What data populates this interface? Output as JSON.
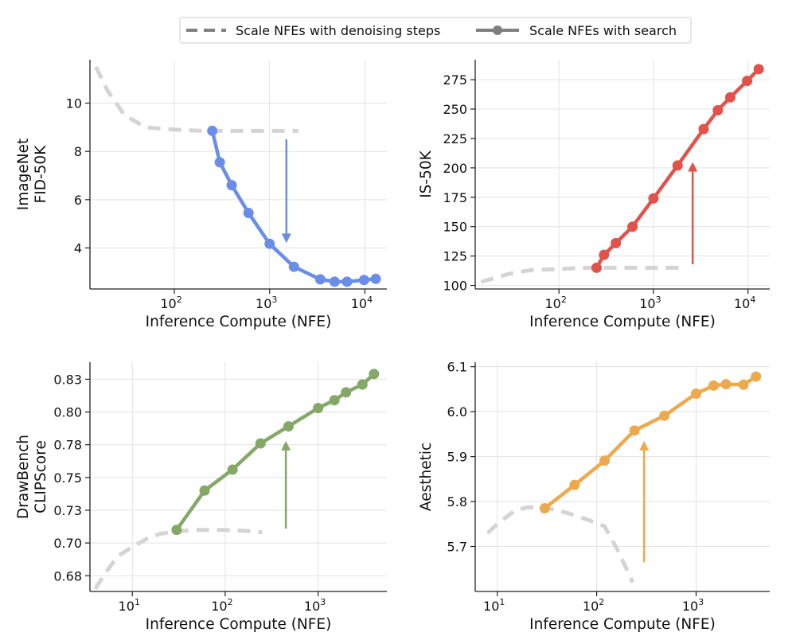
{
  "legend": {
    "placement": "top-center",
    "items": [
      {
        "label": "Scale NFEs with denoising steps",
        "style": "dashed",
        "color": "#7f7f7f"
      },
      {
        "label": "Scale NFEs with search",
        "style": "solid-marker",
        "color": "#7f7f7f"
      }
    ]
  },
  "chart_data": [
    {
      "type": "line",
      "ylabel_lines": [
        "ImageNet",
        "FID-50K"
      ],
      "xlabel": "Inference Compute (NFE)",
      "xscale": "log",
      "xlim": [
        13,
        17000
      ],
      "ylim": [
        2.3,
        11.8
      ],
      "xticks": [
        {
          "base": "10",
          "exp": "2",
          "value": 100
        },
        {
          "base": "10",
          "exp": "3",
          "value": 1000
        },
        {
          "base": "10",
          "exp": "4",
          "value": 10000
        }
      ],
      "yticks": [
        {
          "label": "4",
          "value": 4
        },
        {
          "label": "6",
          "value": 6
        },
        {
          "label": "8",
          "value": 8
        },
        {
          "label": "10",
          "value": 10
        }
      ],
      "grid": true,
      "color": "#6a8ee8",
      "search_series": {
        "x": [
          250,
          300,
          400,
          600,
          1000,
          1800,
          3400,
          4800,
          6500,
          9800,
          13000
        ],
        "y": [
          8.85,
          7.55,
          6.6,
          5.45,
          4.17,
          3.22,
          2.7,
          2.6,
          2.6,
          2.67,
          2.72
        ]
      },
      "steps_series": {
        "x": [
          15,
          20,
          30,
          50,
          100,
          200,
          500,
          1000,
          2000
        ],
        "y": [
          11.5,
          10.5,
          9.5,
          9.0,
          8.9,
          8.85,
          8.85,
          8.85,
          8.85
        ]
      },
      "arrow": {
        "x": 1500,
        "y_from": 8.5,
        "y_to": 4.2
      }
    },
    {
      "type": "line",
      "ylabel_lines": [
        "IS-50K"
      ],
      "xlabel": "Inference Compute (NFE)",
      "xscale": "log",
      "xlim": [
        13,
        17000
      ],
      "ylim": [
        97,
        292
      ],
      "xticks": [
        {
          "base": "10",
          "exp": "2",
          "value": 100
        },
        {
          "base": "10",
          "exp": "3",
          "value": 1000
        },
        {
          "base": "10",
          "exp": "4",
          "value": 10000
        }
      ],
      "yticks": [
        {
          "label": "100",
          "value": 100
        },
        {
          "label": "125",
          "value": 125
        },
        {
          "label": "150",
          "value": 150
        },
        {
          "label": "175",
          "value": 175
        },
        {
          "label": "200",
          "value": 200
        },
        {
          "label": "225",
          "value": 225
        },
        {
          "label": "250",
          "value": 250
        },
        {
          "label": "275",
          "value": 275
        }
      ],
      "grid": true,
      "color": "#e0524a",
      "search_series": {
        "x": [
          250,
          300,
          400,
          600,
          1000,
          1800,
          3400,
          4800,
          6500,
          9800,
          13000
        ],
        "y": [
          115,
          126,
          136,
          150,
          174,
          202,
          233,
          249,
          260,
          274,
          284
        ]
      },
      "steps_series": {
        "x": [
          15,
          30,
          50,
          100,
          200,
          500,
          1000,
          2000
        ],
        "y": [
          103,
          110,
          113,
          114,
          115,
          115,
          115,
          115
        ]
      },
      "arrow": {
        "x": 2600,
        "y_from": 118,
        "y_to": 205
      }
    },
    {
      "type": "line",
      "ylabel_lines": [
        "DrawBench",
        "CLIPScore"
      ],
      "xlabel": "Inference Compute (NFE)",
      "xscale": "log",
      "xlim": [
        3.5,
        5500
      ],
      "ylim": [
        0.663,
        0.838
      ],
      "xticks": [
        {
          "base": "10",
          "exp": "1",
          "value": 10
        },
        {
          "base": "10",
          "exp": "2",
          "value": 100
        },
        {
          "base": "10",
          "exp": "3",
          "value": 1000
        }
      ],
      "yticks": [
        {
          "label": "0.68",
          "value": 0.675
        },
        {
          "label": "0.70",
          "value": 0.7
        },
        {
          "label": "0.73",
          "value": 0.725
        },
        {
          "label": "0.75",
          "value": 0.75
        },
        {
          "label": "0.78",
          "value": 0.775
        },
        {
          "label": "0.80",
          "value": 0.8
        },
        {
          "label": "0.83",
          "value": 0.825
        }
      ],
      "grid": true,
      "color": "#85a867",
      "search_series": {
        "x": [
          30,
          60,
          120,
          240,
          480,
          1000,
          1500,
          2000,
          3000,
          4000
        ],
        "y": [
          0.71,
          0.74,
          0.756,
          0.776,
          0.789,
          0.803,
          0.809,
          0.815,
          0.821,
          0.829
        ]
      },
      "steps_series": {
        "x": [
          4,
          5,
          7,
          10,
          15,
          20,
          30,
          50,
          100,
          200,
          250
        ],
        "y": [
          0.665,
          0.676,
          0.69,
          0.697,
          0.704,
          0.707,
          0.709,
          0.71,
          0.71,
          0.709,
          0.708
        ]
      },
      "arrow": {
        "x": 450,
        "y_from": 0.711,
        "y_to": 0.778
      }
    },
    {
      "type": "line",
      "ylabel_lines": [
        "Aesthetic"
      ],
      "xlabel": "Inference Compute (NFE)",
      "xscale": "log",
      "xlim": [
        6,
        5500
      ],
      "ylim": [
        5.6,
        6.11
      ],
      "xticks": [
        {
          "base": "10",
          "exp": "1",
          "value": 10
        },
        {
          "base": "10",
          "exp": "2",
          "value": 100
        },
        {
          "base": "10",
          "exp": "3",
          "value": 1000
        }
      ],
      "yticks": [
        {
          "label": "5.7",
          "value": 5.7
        },
        {
          "label": "5.8",
          "value": 5.8
        },
        {
          "label": "5.9",
          "value": 5.9
        },
        {
          "label": "6.0",
          "value": 6.0
        },
        {
          "label": "6.1",
          "value": 6.1
        }
      ],
      "grid": true,
      "color": "#eda94e",
      "search_series": {
        "x": [
          30,
          60,
          120,
          240,
          480,
          1000,
          1500,
          2000,
          3000,
          4000
        ],
        "y": [
          5.785,
          5.837,
          5.891,
          5.958,
          5.991,
          6.04,
          6.058,
          6.061,
          6.06,
          6.078
        ]
      },
      "steps_series": {
        "x": [
          8,
          10,
          15,
          20,
          30,
          50,
          80,
          120,
          160,
          200,
          230
        ],
        "y": [
          5.73,
          5.75,
          5.78,
          5.787,
          5.787,
          5.775,
          5.76,
          5.745,
          5.695,
          5.65,
          5.62
        ]
      },
      "arrow": {
        "x": 300,
        "y_from": 5.665,
        "y_to": 5.935
      }
    }
  ]
}
